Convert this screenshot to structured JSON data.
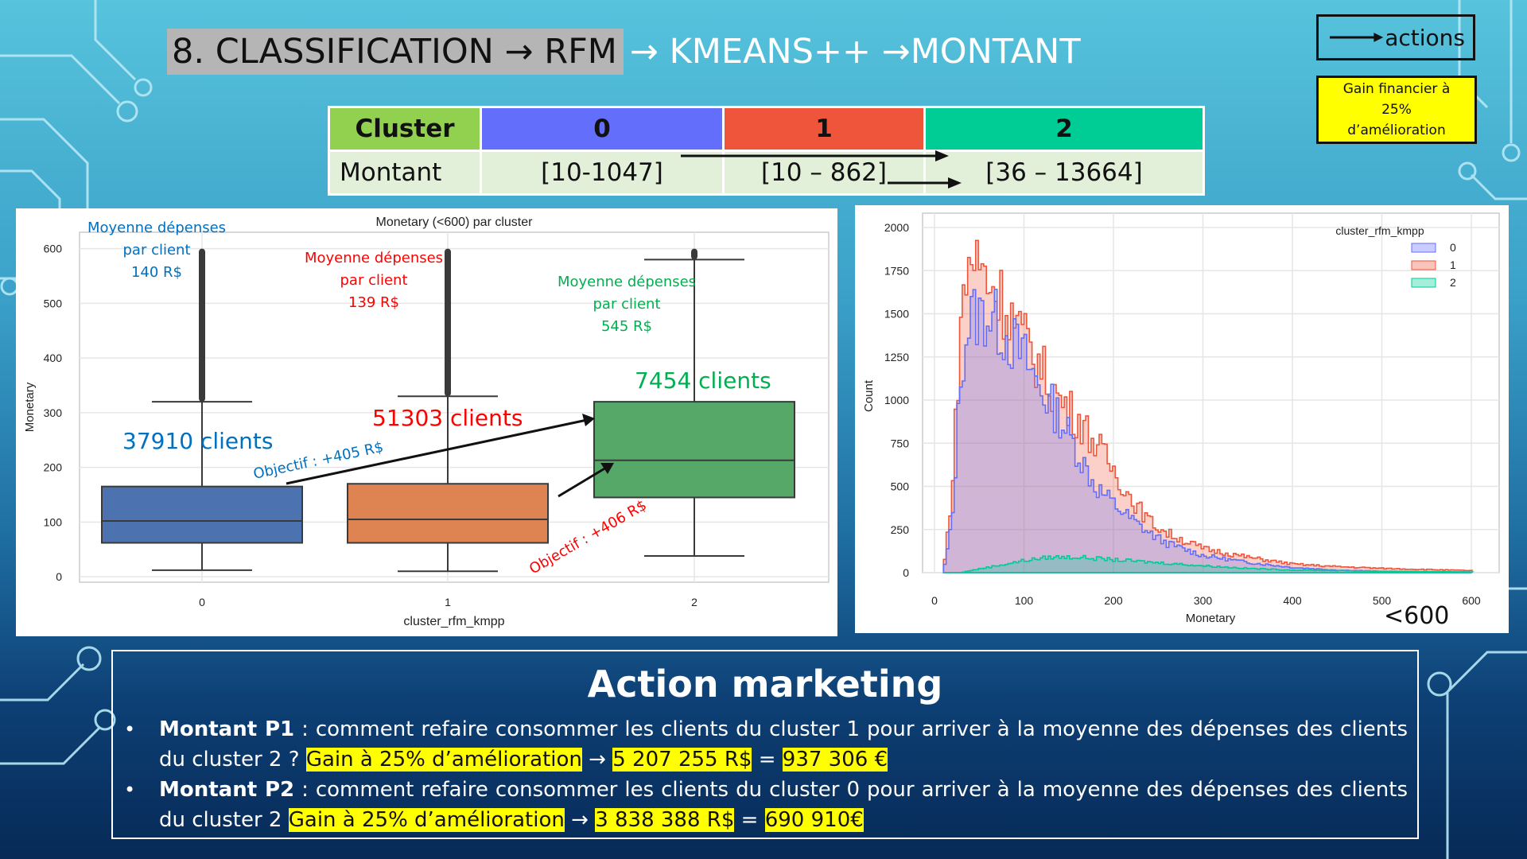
{
  "slide": {
    "title_highlight": "8. CLASSIFICATION → RFM",
    "title_rest": "→ KMEANS++ →MONTANT"
  },
  "legend": {
    "label": "actions"
  },
  "gain_box": {
    "line1": "Gain financier à",
    "line2": "25%",
    "line3": "d’amélioration"
  },
  "cluster_table": {
    "header": [
      "Cluster",
      "0",
      "1",
      "2"
    ],
    "row_label": "Montant",
    "ranges": [
      "[10-1047]",
      "[10 – 862]",
      "[36 – 13664]"
    ],
    "colors": [
      "#92d050",
      "#636efa",
      "#ef553b",
      "#00cc96"
    ]
  },
  "boxplot": {
    "chart_data": {
      "type": "box",
      "title": "Monetary (<600) par cluster",
      "xlabel": "cluster_rfm_kmpp",
      "ylabel": "Monetary",
      "categories": [
        "0",
        "1",
        "2"
      ],
      "ylim": [
        -10,
        630
      ],
      "yticks": [
        "0",
        "100",
        "200",
        "300",
        "400",
        "500",
        "600"
      ],
      "boxes": [
        {
          "min": 12,
          "q1": 62,
          "median": 102,
          "q3": 165,
          "max": 320,
          "outliers_to": 600,
          "color": "#4c72b0"
        },
        {
          "min": 10,
          "q1": 62,
          "median": 105,
          "q3": 170,
          "max": 330,
          "outliers_to": 600,
          "color": "#dd8452"
        },
        {
          "min": 38,
          "q1": 145,
          "median": 213,
          "q3": 320,
          "max": 580,
          "outliers_to": 600,
          "color": "#55a868"
        }
      ]
    },
    "annotations": {
      "c0_avg": [
        "Moyenne dépenses",
        "par client",
        "140 R$"
      ],
      "c1_avg": [
        "Moyenne dépenses",
        "par client",
        "139 R$"
      ],
      "c2_avg": [
        "Moyenne dépenses",
        "par client",
        "545 R$"
      ],
      "c0_clients": "37910 clients",
      "c1_clients": "51303 clients",
      "c2_clients": "7454 clients",
      "obj1": "Objectif : +405 R$",
      "obj2": "Objectif : +406 R$",
      "color_c0": "#0070c0",
      "color_c1": "#ff0000",
      "color_c2": "#00b050"
    }
  },
  "histogram": {
    "chart_data": {
      "type": "histogram",
      "xlabel": "Monetary",
      "ylabel": "Count",
      "xlim": [
        0,
        600
      ],
      "ylim": [
        0,
        2000
      ],
      "xticks": [
        "0",
        "100",
        "200",
        "300",
        "400",
        "500",
        "600"
      ],
      "yticks": [
        "0",
        "250",
        "500",
        "750",
        "1000",
        "1250",
        "1500",
        "1750",
        "2000"
      ],
      "legend_title": "cluster_rfm_kmpp",
      "legend_position": "top-right",
      "series": [
        {
          "name": "0",
          "color": "#636efa",
          "profile": [
            [
              10,
              0
            ],
            [
              20,
              300
            ],
            [
              30,
              1200
            ],
            [
              40,
              1480
            ],
            [
              60,
              1500
            ],
            [
              80,
              1380
            ],
            [
              100,
              1250
            ],
            [
              120,
              1050
            ],
            [
              140,
              900
            ],
            [
              160,
              700
            ],
            [
              180,
              500
            ],
            [
              200,
              400
            ],
            [
              220,
              310
            ],
            [
              240,
              230
            ],
            [
              260,
              170
            ],
            [
              300,
              100
            ],
            [
              350,
              60
            ],
            [
              400,
              30
            ],
            [
              450,
              15
            ],
            [
              500,
              8
            ],
            [
              600,
              4
            ]
          ]
        },
        {
          "name": "1",
          "color": "#ef553b",
          "profile": [
            [
              10,
              0
            ],
            [
              20,
              500
            ],
            [
              30,
              1500
            ],
            [
              40,
              1850
            ],
            [
              60,
              1700
            ],
            [
              80,
              1550
            ],
            [
              100,
              1350
            ],
            [
              120,
              1180
            ],
            [
              140,
              1000
            ],
            [
              160,
              900
            ],
            [
              180,
              750
            ],
            [
              200,
              600
            ],
            [
              220,
              430
            ],
            [
              240,
              300
            ],
            [
              260,
              230
            ],
            [
              300,
              140
            ],
            [
              350,
              90
            ],
            [
              400,
              50
            ],
            [
              450,
              35
            ],
            [
              500,
              25
            ],
            [
              600,
              12
            ]
          ]
        },
        {
          "name": "2",
          "color": "#00cc96",
          "profile": [
            [
              30,
              0
            ],
            [
              40,
              12
            ],
            [
              80,
              50
            ],
            [
              100,
              70
            ],
            [
              130,
              90
            ],
            [
              160,
              90
            ],
            [
              200,
              75
            ],
            [
              250,
              58
            ],
            [
              300,
              40
            ],
            [
              350,
              25
            ],
            [
              400,
              15
            ],
            [
              500,
              8
            ],
            [
              600,
              4
            ]
          ]
        }
      ]
    },
    "note": "<600"
  },
  "marketing": {
    "title": "Action marketing",
    "p1_label": "Montant P1",
    "p1_text": " : comment refaire consommer les clients du cluster 1 pour arriver à la moyenne des dépenses des clients du cluster 2 ? ",
    "p1_gain": "Gain à 25% d’amélioration",
    "p1_amount": "5 207 255 R$",
    "p1_eq": " = ",
    "p1_eur": "937 306 €",
    "p2_label": "Montant P2",
    "p2_text": " : comment refaire consommer les clients du cluster 0 pour arriver à la moyenne des dépenses des clients du cluster 2 ",
    "p2_gain": "Gain à 25% d’amélioration",
    "p2_amount": "3 838 388 R$",
    "p2_eq": " = ",
    "p2_eur": "690 910€",
    "bullet": "•",
    "arrow": " → "
  }
}
